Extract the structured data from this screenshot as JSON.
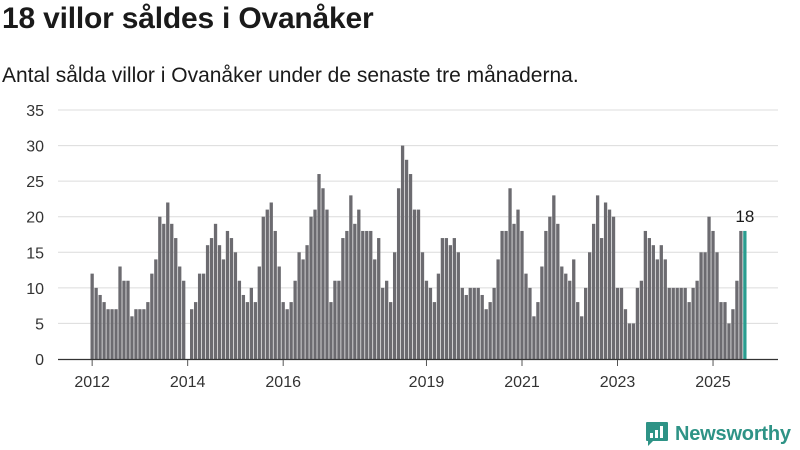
{
  "title": "18 villor såldes i Ovanåker",
  "subtitle": "Antal sålda villor i Ovanåker under de senaste tre månaderna.",
  "brand": {
    "name": "Newsworthy"
  },
  "colors": {
    "bar": "#6c6b70",
    "highlight": "#2a9d8f",
    "grid": "#dcdcdc",
    "axis": "#555555",
    "brand": "#2e9386"
  },
  "chart_data": {
    "type": "bar",
    "title": "",
    "xlabel": "",
    "ylabel": "",
    "ylim": [
      0,
      35
    ],
    "yticks": [
      0,
      5,
      10,
      15,
      20,
      25,
      30,
      35
    ],
    "x_tick_labels": [
      "2012",
      "2014",
      "2016",
      "2019",
      "2021",
      "2023",
      "2025"
    ],
    "grid": true,
    "highlight_label": "18",
    "values": [
      12,
      10,
      9,
      8,
      7,
      7,
      7,
      13,
      11,
      11,
      6,
      7,
      7,
      7,
      8,
      12,
      14,
      20,
      19,
      22,
      19,
      17,
      13,
      11,
      0,
      7,
      8,
      12,
      12,
      16,
      17,
      19,
      16,
      14,
      18,
      17,
      15,
      11,
      9,
      8,
      10,
      8,
      13,
      20,
      21,
      22,
      18,
      13,
      8,
      7,
      8,
      11,
      15,
      14,
      16,
      20,
      21,
      26,
      24,
      21,
      8,
      11,
      11,
      17,
      18,
      23,
      19,
      21,
      18,
      18,
      18,
      14,
      17,
      10,
      11,
      8,
      15,
      24,
      30,
      28,
      26,
      21,
      21,
      15,
      11,
      10,
      8,
      12,
      17,
      17,
      16,
      17,
      15,
      10,
      9,
      10,
      10,
      10,
      9,
      7,
      8,
      10,
      14,
      18,
      18,
      24,
      19,
      21,
      18,
      12,
      10,
      6,
      8,
      13,
      18,
      20,
      23,
      19,
      13,
      12,
      11,
      14,
      8,
      6,
      10,
      15,
      19,
      23,
      17,
      22,
      21,
      20,
      10,
      10,
      7,
      5,
      5,
      10,
      11,
      18,
      17,
      16,
      14,
      16,
      14,
      10,
      10,
      10,
      10,
      10,
      8,
      10,
      11,
      15,
      15,
      20,
      18,
      15,
      8,
      8,
      5,
      7,
      11,
      18,
      18
    ]
  }
}
